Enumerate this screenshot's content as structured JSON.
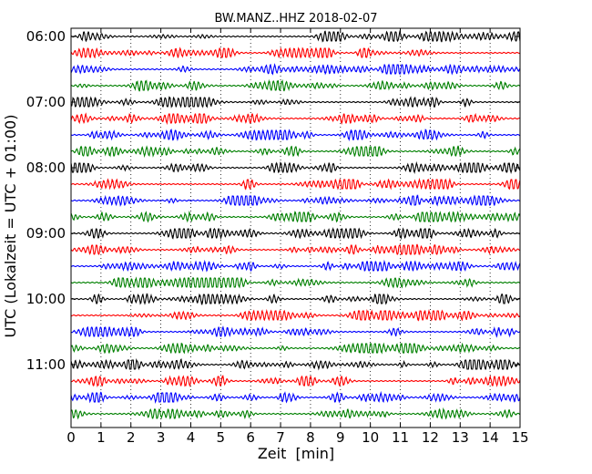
{
  "chart_data": {
    "type": "line",
    "subtype": "seismogram-dayplot",
    "title": "BW.MANZ..HHZ 2018-02-07",
    "xlabel": "Zeit  [min]",
    "ylabel": "UTC (Lokalzeit = UTC + 01:00)",
    "xlim": [
      0,
      15
    ],
    "x_ticks": [
      "0",
      "1",
      "2",
      "3",
      "4",
      "5",
      "6",
      "7",
      "8",
      "9",
      "10",
      "11",
      "12",
      "13",
      "14",
      "15"
    ],
    "y_ticks": [
      "06:00",
      "07:00",
      "08:00",
      "09:00",
      "10:00",
      "11:00"
    ],
    "grid": "vertical dotted at each minute",
    "trace_colors": [
      "#000000",
      "#ff0000",
      "#0000ff",
      "#008000"
    ],
    "traces": [
      {
        "start": "06:00",
        "color": "#000000"
      },
      {
        "start": "06:15",
        "color": "#ff0000"
      },
      {
        "start": "06:30",
        "color": "#0000ff"
      },
      {
        "start": "06:45",
        "color": "#008000"
      },
      {
        "start": "07:00",
        "color": "#000000"
      },
      {
        "start": "07:15",
        "color": "#ff0000"
      },
      {
        "start": "07:30",
        "color": "#0000ff"
      },
      {
        "start": "07:45",
        "color": "#008000"
      },
      {
        "start": "08:00",
        "color": "#000000"
      },
      {
        "start": "08:15",
        "color": "#ff0000"
      },
      {
        "start": "08:30",
        "color": "#0000ff"
      },
      {
        "start": "08:45",
        "color": "#008000"
      },
      {
        "start": "09:00",
        "color": "#000000"
      },
      {
        "start": "09:15",
        "color": "#ff0000"
      },
      {
        "start": "09:30",
        "color": "#0000ff"
      },
      {
        "start": "09:45",
        "color": "#008000"
      },
      {
        "start": "10:00",
        "color": "#000000"
      },
      {
        "start": "10:15",
        "color": "#ff0000"
      },
      {
        "start": "10:30",
        "color": "#0000ff"
      },
      {
        "start": "10:45",
        "color": "#008000"
      },
      {
        "start": "11:00",
        "color": "#000000"
      },
      {
        "start": "11:15",
        "color": "#ff0000"
      },
      {
        "start": "11:30",
        "color": "#0000ff"
      },
      {
        "start": "11:45",
        "color": "#008000"
      }
    ]
  }
}
